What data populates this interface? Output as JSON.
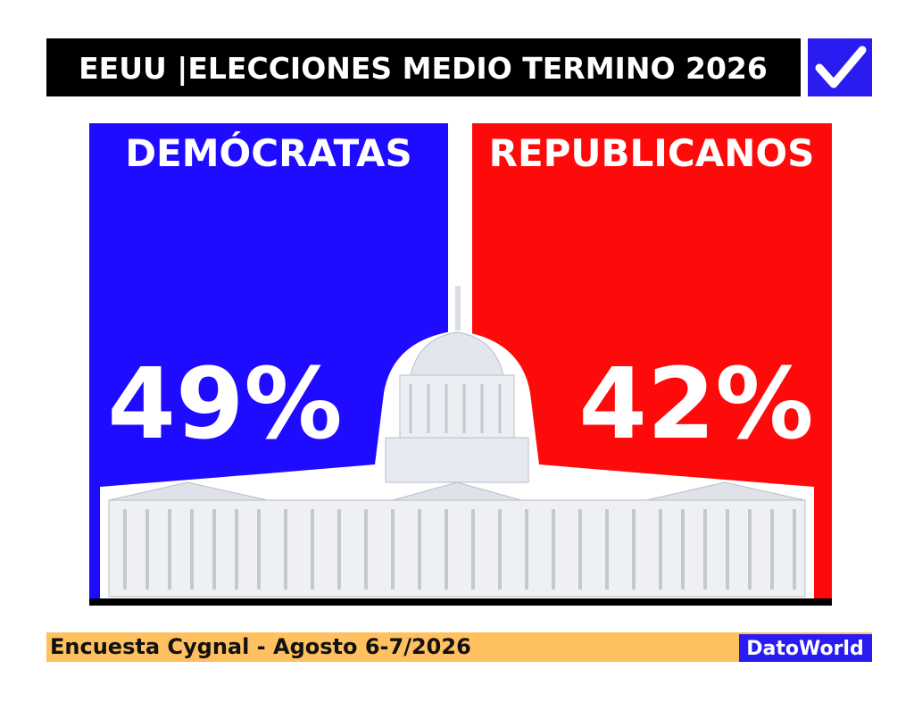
{
  "header": {
    "title": "EEUU |ELECCIONES MEDIO TERMINO 2026"
  },
  "panels": [
    {
      "label": "DEMÓCRATAS",
      "value": "49%"
    },
    {
      "label": "REPUBLICANOS",
      "value": "42%"
    }
  ],
  "footer": {
    "source": "Encuesta Cygnal - Agosto 6-7/2026",
    "brand": "DatoWorld"
  }
}
